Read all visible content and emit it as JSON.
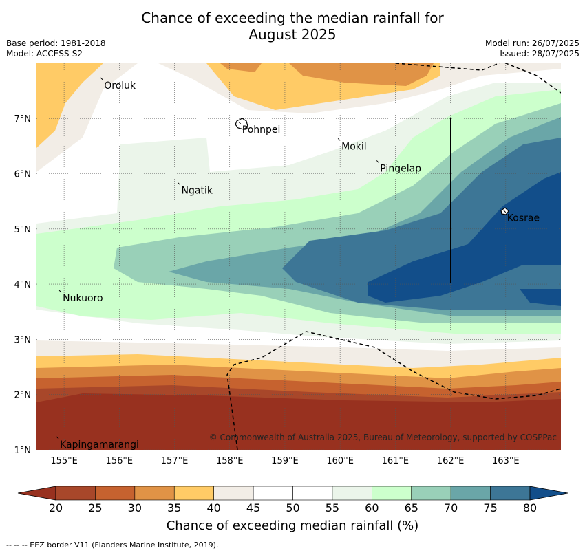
{
  "title_line1": "Chance of exceeding the median rainfall for",
  "title_line2": "August 2025",
  "base_period": "Base period: 1981-2018",
  "model": "Model: ACCESS-S2",
  "model_run": "Model run: 26/07/2025",
  "issued": "Issued: 28/07/2025",
  "copyright": "© Commonwealth of Australia 2025, Bureau of Meteorology, supported by COSPPac",
  "colorbar": {
    "label": "Chance of exceeding median rainfall (%)",
    "ticks": [
      "20",
      "25",
      "30",
      "35",
      "40",
      "45",
      "50",
      "55",
      "60",
      "65",
      "70",
      "75",
      "80"
    ],
    "colors": [
      "#a8472a",
      "#c6622f",
      "#e09346",
      "#ffcb66",
      "#f2ede6",
      "#ffffff",
      "#ffffff",
      "#ebf5ea",
      "#ccffcc",
      "#99d0b8",
      "#6aa6a8",
      "#3d7696",
      "#124e8a"
    ]
  },
  "footnote": "-- -- -- EEZ border V11 (Flanders Marine Institute, 2019).",
  "map": {
    "lon_range": [
      154.5,
      164.0
    ],
    "lat_range": [
      1.0,
      8.0
    ],
    "lon_ticks": [
      "155°E",
      "156°E",
      "157°E",
      "158°E",
      "159°E",
      "160°E",
      "161°E",
      "162°E",
      "163°E"
    ],
    "lat_ticks": [
      "1°N",
      "2°N",
      "3°N",
      "4°N",
      "5°N",
      "6°N",
      "7°N"
    ],
    "places": [
      {
        "name": "Oroluk",
        "lon": 155.7,
        "lat": 7.7
      },
      {
        "name": "Pohnpei",
        "lon": 158.2,
        "lat": 6.9
      },
      {
        "name": "Mokil",
        "lon": 160.0,
        "lat": 6.6
      },
      {
        "name": "Pingelap",
        "lon": 160.7,
        "lat": 6.2
      },
      {
        "name": "Ngatik",
        "lon": 157.1,
        "lat": 5.8
      },
      {
        "name": "Kosrae",
        "lon": 163.0,
        "lat": 5.3
      },
      {
        "name": "Nukuoro",
        "lon": 154.95,
        "lat": 3.85
      },
      {
        "name": "Kapingamarangi",
        "lon": 154.9,
        "lat": 1.2
      }
    ]
  }
}
